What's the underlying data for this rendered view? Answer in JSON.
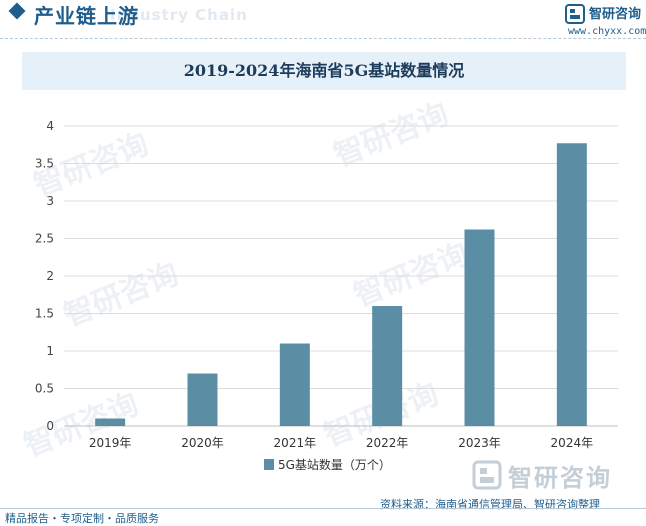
{
  "header": {
    "title": "产业链上游",
    "ghost_text": "Industry Chain",
    "brand": {
      "name": "智研咨询",
      "url": "www.chyxx.com"
    }
  },
  "watermark_text": "智研咨询",
  "chart_data": {
    "type": "bar",
    "title": "2019-2024年海南省5G基站数量情况",
    "categories": [
      "2019年",
      "2020年",
      "2021年",
      "2022年",
      "2023年",
      "2024年"
    ],
    "series": [
      {
        "name": "5G基站数量（万个）",
        "values": [
          0.1,
          0.7,
          1.1,
          1.6,
          2.62,
          3.77
        ]
      }
    ],
    "ylim": [
      0,
      4
    ],
    "yticks": [
      "0",
      "0.5",
      "1",
      "1.5",
      "2",
      "2.5",
      "3",
      "3.5",
      "4"
    ],
    "xlabel": "",
    "ylabel": "",
    "grid": true,
    "legend_position": "bottom",
    "bar_color": "#5b8ea5"
  },
  "source": "资料来源：海南省通信管理局、智研咨询整理",
  "footer": "精品报告・专项定制・品质服务"
}
